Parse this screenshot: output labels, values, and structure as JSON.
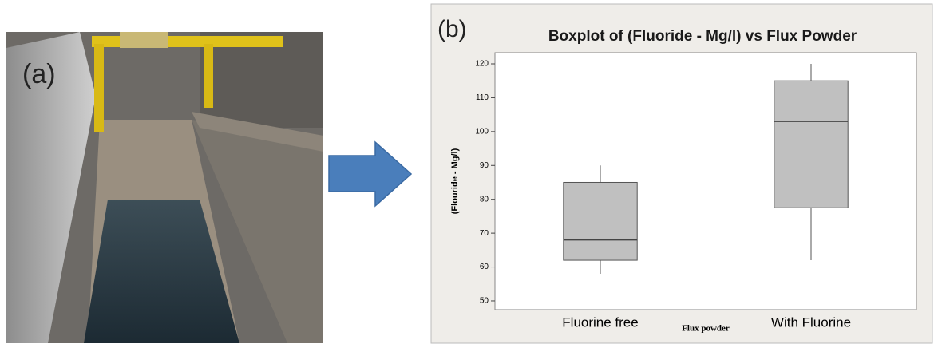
{
  "panel_labels": [
    "(a)",
    "(b)"
  ],
  "chart_data": {
    "type": "box",
    "title": "Boxplot of (Fluoride - Mg/l) vs Flux Powder",
    "x_label": "Flux powder",
    "y_label": "(Flouride - Mg/l)",
    "categories": [
      "Fluorine free",
      "With Fluorine"
    ],
    "boxes": [
      {
        "min": 58,
        "q1": 62,
        "median": 68,
        "q3": 85,
        "max": 90
      },
      {
        "min": 62,
        "q1": 77.5,
        "median": 103,
        "q3": 115,
        "max": 120
      }
    ],
    "color": "#c0c0c0",
    "ylim": [
      47.4,
      123.3
    ],
    "yticks": [
      50,
      60,
      70,
      80,
      90,
      100,
      110,
      120
    ]
  }
}
